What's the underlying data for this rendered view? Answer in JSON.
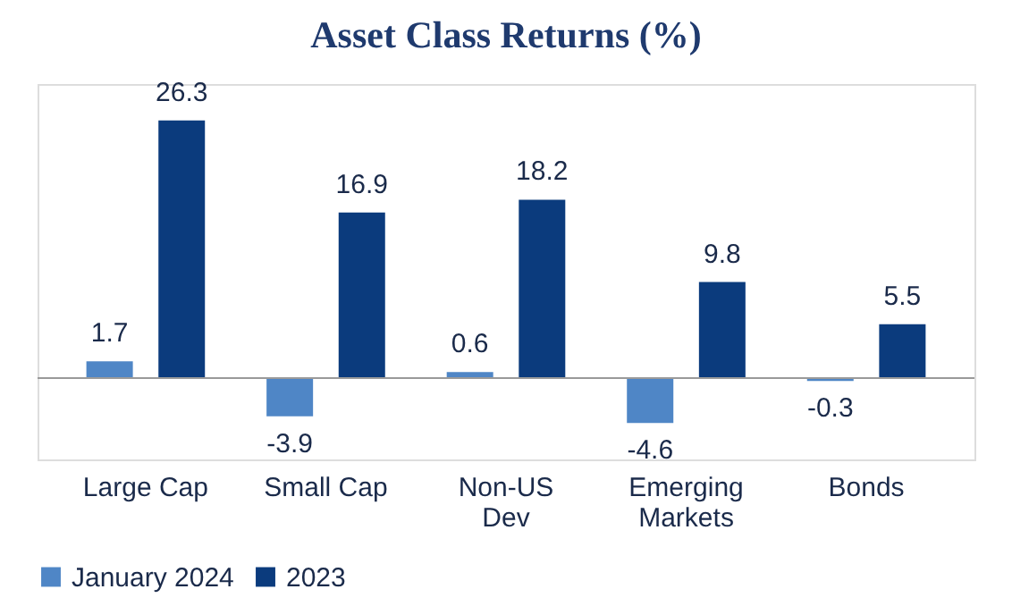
{
  "chart_data": {
    "type": "bar",
    "title": "Asset Class Returns (%)",
    "categories": [
      "Large Cap",
      "Small Cap",
      "Non-US Dev",
      "Emerging Markets",
      "Bonds"
    ],
    "series": [
      {
        "name": "January 2024",
        "color": "#4f86c6",
        "values": [
          1.7,
          -3.9,
          0.6,
          -4.6,
          -0.3
        ]
      },
      {
        "name": "2023",
        "color": "#0b3b7d",
        "values": [
          26.3,
          16.9,
          18.2,
          9.8,
          5.5
        ]
      }
    ],
    "data_labels": true,
    "legend": "bottom",
    "grid": false
  }
}
